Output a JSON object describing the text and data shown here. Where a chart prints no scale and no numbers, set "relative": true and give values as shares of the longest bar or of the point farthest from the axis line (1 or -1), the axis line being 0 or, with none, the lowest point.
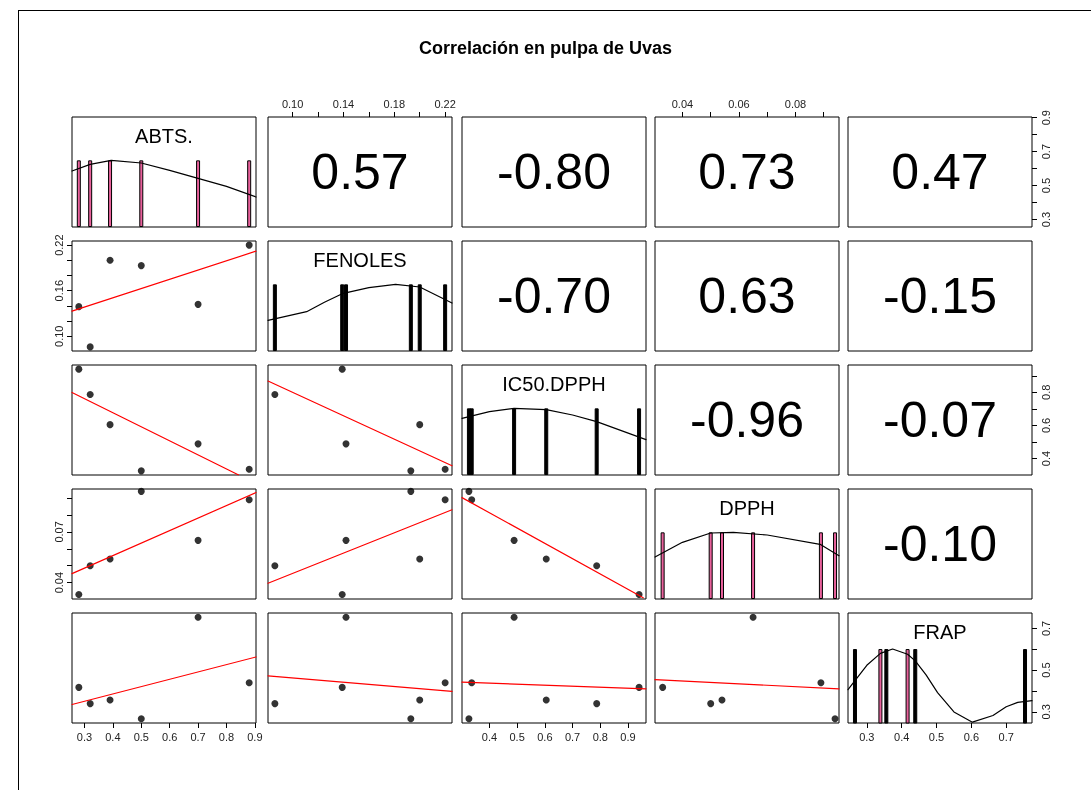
{
  "chart_data": [
    {
      "type": "other",
      "title": "Correlación en pulpa de Uvas"
    },
    {
      "type": "bar",
      "title": "ABTS.",
      "relative": true,
      "xlim": [
        0.256,
        0.904
      ],
      "tick_labels": false,
      "series": [
        {
          "type": "bar",
          "x": [
            0.28,
            0.32,
            0.39,
            0.5,
            0.7,
            0.88
          ],
          "values": [
            1,
            1,
            1,
            1,
            1,
            1
          ],
          "colors": [
            "#e8609b",
            "#e8609b",
            "#e8609b",
            "#e8609b",
            "#e8609b",
            "#e8609b"
          ]
        },
        {
          "type": "line",
          "x": [
            0.256,
            0.32,
            0.394,
            0.5,
            0.6,
            0.7,
            0.8,
            0.904
          ],
          "values": [
            0.84,
            0.94,
            1.0,
            0.96,
            0.85,
            0.73,
            0.61,
            0.45
          ],
          "color": "#000000"
        }
      ]
    },
    {
      "type": "scatter",
      "annotations": [
        "0.57"
      ],
      "ylim": [
        0.256,
        0.904
      ],
      "xlim": [
        0.0806,
        0.2254
      ],
      "xticks": [
        {
          "value": 0.1,
          "label": "0.10"
        },
        {
          "value": 0.12,
          "label": null
        },
        0.14,
        {
          "value": 0.16,
          "label": null
        },
        0.18,
        {
          "value": 0.2,
          "label": null
        },
        0.22
      ],
      "tick_labels": "x"
    },
    {
      "type": "other",
      "annotations": [
        "-0.80"
      ]
    },
    {
      "type": "scatter",
      "annotations": [
        "0.73"
      ],
      "ylim": [
        0.256,
        0.904
      ],
      "xlim": [
        0.0303,
        0.0954
      ],
      "xticks": [
        0.04,
        {
          "value": 0.05,
          "label": null
        },
        0.06,
        {
          "value": 0.07,
          "label": null
        },
        0.08,
        {
          "value": 0.09,
          "label": null
        }
      ],
      "tick_labels": "x"
    },
    {
      "type": "scatter",
      "annotations": [
        "0.47"
      ],
      "xlim": [
        0.246,
        0.774
      ],
      "ylim": [
        0.256,
        0.904
      ],
      "yticks": [
        0.3,
        {
          "value": 0.4,
          "label": null
        },
        0.5,
        {
          "value": 0.6,
          "label": null
        },
        0.7,
        {
          "value": 0.8,
          "label": null
        },
        0.9
      ],
      "tick_labels": "y"
    },
    {
      "type": "scatter",
      "xlim": [
        0.256,
        0.904
      ],
      "ylim": [
        0.0806,
        0.2254
      ],
      "yticks": [
        {
          "value": 0.1,
          "label": "0.10"
        },
        {
          "value": 0.12,
          "label": null
        },
        {
          "value": 0.14,
          "label": null
        },
        0.16,
        {
          "value": 0.18,
          "label": null
        },
        {
          "value": 0.2,
          "label": null
        },
        0.22
      ],
      "tick_labels": "y",
      "series": [
        {
          "type": "scatter",
          "marker": "circle",
          "x": [
            0.28,
            0.32,
            0.39,
            0.5,
            0.7,
            0.88
          ],
          "values": [
            0.139,
            0.086,
            0.2,
            0.193,
            0.142,
            0.22
          ],
          "color": "#000000"
        },
        {
          "type": "line",
          "x": [
            0.256,
            0.904
          ],
          "values": [
            0.133,
            0.212
          ],
          "color": "#ff0000"
        }
      ]
    },
    {
      "type": "bar",
      "title": "FENOLES",
      "relative": true,
      "xlim": [
        0.0806,
        0.2254
      ],
      "tick_labels": false,
      "series": [
        {
          "type": "bar",
          "x": [
            0.086,
            0.139,
            0.142,
            0.193,
            0.2,
            0.22
          ],
          "values": [
            1,
            1,
            1,
            1,
            1,
            1
          ],
          "colors": [
            "#000000",
            "#000000",
            "#000000",
            "#000000",
            "#000000",
            "#000000"
          ]
        },
        {
          "type": "line",
          "x": [
            0.0806,
            0.111,
            0.125,
            0.139,
            0.16,
            0.181,
            0.2,
            0.2254
          ],
          "values": [
            0.46,
            0.59,
            0.73,
            0.86,
            0.95,
            1.0,
            0.96,
            0.72
          ],
          "color": "#000000"
        }
      ]
    },
    {
      "type": "other",
      "annotations": [
        "-0.70"
      ]
    },
    {
      "type": "other",
      "annotations": [
        "0.63"
      ]
    },
    {
      "type": "other",
      "annotations": [
        "-0.15"
      ]
    },
    {
      "type": "scatter",
      "xlim": [
        0.256,
        0.904
      ],
      "ylim": [
        0.301,
        0.965
      ],
      "tick_labels": false,
      "series": [
        {
          "type": "scatter",
          "marker": "circle",
          "x": [
            0.28,
            0.32,
            0.39,
            0.5,
            0.7,
            0.88
          ],
          "values": [
            0.94,
            0.787,
            0.605,
            0.326,
            0.489,
            0.336
          ],
          "color": "#000000"
        },
        {
          "type": "line",
          "x": [
            0.256,
            0.843
          ],
          "values": [
            0.799,
            0.301
          ],
          "color": "#ff0000"
        }
      ]
    },
    {
      "type": "scatter",
      "xlim": [
        0.0806,
        0.2254
      ],
      "ylim": [
        0.301,
        0.965
      ],
      "tick_labels": false,
      "series": [
        {
          "type": "scatter",
          "marker": "circle",
          "x": [
            0.139,
            0.086,
            0.2,
            0.193,
            0.142,
            0.22
          ],
          "values": [
            0.94,
            0.787,
            0.605,
            0.326,
            0.489,
            0.336
          ],
          "color": "#000000"
        },
        {
          "type": "line",
          "x": [
            0.0806,
            0.2254
          ],
          "values": [
            0.868,
            0.357
          ],
          "color": "#ff0000"
        }
      ]
    },
    {
      "type": "bar",
      "title": "IC50.DPPH",
      "relative": true,
      "xlim": [
        0.301,
        0.965
      ],
      "tick_labels": false,
      "series": [
        {
          "type": "bar",
          "x": [
            0.326,
            0.336,
            0.489,
            0.605,
            0.787,
            0.94
          ],
          "values": [
            1,
            1,
            1,
            1,
            1,
            1
          ],
          "colors": [
            "#000000",
            "#000000",
            "#000000",
            "#000000",
            "#000000",
            "#000000"
          ]
        },
        {
          "type": "line",
          "x": [
            0.301,
            0.4,
            0.489,
            0.605,
            0.7,
            0.787,
            0.965
          ],
          "values": [
            0.85,
            0.95,
            1.0,
            0.98,
            0.9,
            0.8,
            0.53
          ],
          "color": "#000000"
        }
      ]
    },
    {
      "type": "other",
      "annotations": [
        "-0.96"
      ]
    },
    {
      "type": "scatter",
      "annotations": [
        "-0.07"
      ],
      "xlim": [
        0.246,
        0.774
      ],
      "ylim": [
        0.301,
        0.965
      ],
      "yticks": [
        0.4,
        {
          "value": 0.5,
          "label": null
        },
        0.6,
        {
          "value": 0.7,
          "label": null
        },
        0.8,
        {
          "value": 0.9,
          "label": null
        }
      ],
      "tick_labels": "y"
    },
    {
      "type": "scatter",
      "xlim": [
        0.256,
        0.904
      ],
      "ylim": [
        0.0303,
        0.0954
      ],
      "yticks": [
        0.04,
        {
          "value": 0.05,
          "label": null
        },
        {
          "value": 0.06,
          "label": null
        },
        0.07,
        {
          "value": 0.08,
          "label": null
        },
        {
          "value": 0.09,
          "label": null
        }
      ],
      "tick_labels": "y",
      "series": [
        {
          "type": "scatter",
          "marker": "circle",
          "x": [
            0.28,
            0.32,
            0.39,
            0.5,
            0.7,
            0.88
          ],
          "values": [
            0.033,
            0.05,
            0.054,
            0.094,
            0.065,
            0.089
          ],
          "color": "#000000"
        },
        {
          "type": "line",
          "x": [
            0.256,
            0.904
          ],
          "values": [
            0.0453,
            0.0933
          ],
          "color": "#ff0000"
        }
      ]
    },
    {
      "type": "scatter",
      "xlim": [
        0.0806,
        0.2254
      ],
      "ylim": [
        0.0303,
        0.0954
      ],
      "tick_labels": false,
      "series": [
        {
          "type": "scatter",
          "marker": "circle",
          "x": [
            0.139,
            0.086,
            0.2,
            0.193,
            0.142,
            0.22
          ],
          "values": [
            0.033,
            0.05,
            0.054,
            0.094,
            0.065,
            0.089
          ],
          "color": "#000000"
        },
        {
          "type": "line",
          "x": [
            0.0806,
            0.2254
          ],
          "values": [
            0.0396,
            0.0831
          ],
          "color": "#ff0000"
        }
      ]
    },
    {
      "type": "scatter",
      "xlim": [
        0.301,
        0.965
      ],
      "ylim": [
        0.0303,
        0.0954
      ],
      "tick_labels": false,
      "series": [
        {
          "type": "scatter",
          "marker": "circle",
          "x": [
            0.94,
            0.787,
            0.605,
            0.326,
            0.489,
            0.336
          ],
          "values": [
            0.033,
            0.05,
            0.054,
            0.094,
            0.065,
            0.089
          ],
          "color": "#000000"
        },
        {
          "type": "line",
          "x": [
            0.301,
            0.955
          ],
          "values": [
            0.0903,
            0.031
          ],
          "color": "#ff0000"
        }
      ]
    },
    {
      "type": "bar",
      "title": "DPPH",
      "relative": true,
      "xlim": [
        0.0303,
        0.0954
      ],
      "tick_labels": false,
      "series": [
        {
          "type": "bar",
          "x": [
            0.033,
            0.05,
            0.054,
            0.065,
            0.089,
            0.094
          ],
          "values": [
            1,
            1,
            1,
            1,
            1,
            1
          ],
          "colors": [
            "#e8609b",
            "#e8609b",
            "#e8609b",
            "#e8609b",
            "#e8609b",
            "#e8609b"
          ]
        },
        {
          "type": "line",
          "x": [
            0.0303,
            0.04,
            0.05,
            0.058,
            0.07,
            0.0887,
            0.0954
          ],
          "values": [
            0.63,
            0.85,
            0.99,
            1.0,
            0.96,
            0.82,
            0.65
          ],
          "color": "#000000"
        }
      ]
    },
    {
      "type": "other",
      "annotations": [
        "-0.10"
      ]
    },
    {
      "type": "scatter",
      "xlim": [
        0.256,
        0.904
      ],
      "ylim": [
        0.246,
        0.774
      ],
      "xticks": [
        0.3,
        0.4,
        0.5,
        0.6,
        0.7,
        0.8,
        0.9
      ],
      "tick_labels": "x",
      "series": [
        {
          "type": "scatter",
          "marker": "circle",
          "x": [
            0.28,
            0.32,
            0.39,
            0.5,
            0.7,
            0.88
          ],
          "values": [
            0.417,
            0.339,
            0.356,
            0.266,
            0.754,
            0.439
          ],
          "color": "#000000"
        },
        {
          "type": "line",
          "x": [
            0.256,
            0.904
          ],
          "values": [
            0.335,
            0.563
          ],
          "color": "#ff0000"
        }
      ]
    },
    {
      "type": "scatter",
      "xlim": [
        0.0806,
        0.2254
      ],
      "ylim": [
        0.246,
        0.774
      ],
      "tick_labels": false,
      "series": [
        {
          "type": "scatter",
          "marker": "circle",
          "x": [
            0.139,
            0.086,
            0.2,
            0.193,
            0.142,
            0.22
          ],
          "values": [
            0.417,
            0.339,
            0.356,
            0.266,
            0.754,
            0.439
          ],
          "color": "#000000"
        },
        {
          "type": "line",
          "x": [
            0.0806,
            0.2254
          ],
          "values": [
            0.472,
            0.398
          ],
          "color": "#ff0000"
        }
      ]
    },
    {
      "type": "scatter",
      "xlim": [
        0.301,
        0.965
      ],
      "ylim": [
        0.246,
        0.774
      ],
      "xticks": [
        0.4,
        0.5,
        0.6,
        0.7,
        0.8,
        0.9
      ],
      "tick_labels": "x",
      "series": [
        {
          "type": "scatter",
          "marker": "circle",
          "x": [
            0.94,
            0.787,
            0.605,
            0.326,
            0.489,
            0.336
          ],
          "values": [
            0.417,
            0.339,
            0.356,
            0.266,
            0.754,
            0.439
          ],
          "color": "#000000"
        },
        {
          "type": "line",
          "x": [
            0.301,
            0.965
          ],
          "values": [
            0.442,
            0.41
          ],
          "color": "#ff0000"
        }
      ]
    },
    {
      "type": "scatter",
      "xlim": [
        0.0303,
        0.0954
      ],
      "ylim": [
        0.246,
        0.774
      ],
      "tick_labels": false,
      "series": [
        {
          "type": "scatter",
          "marker": "circle",
          "x": [
            0.033,
            0.05,
            0.054,
            0.094,
            0.065,
            0.089
          ],
          "values": [
            0.417,
            0.339,
            0.356,
            0.266,
            0.754,
            0.439
          ],
          "color": "#000000"
        },
        {
          "type": "line",
          "x": [
            0.0303,
            0.0954
          ],
          "values": [
            0.454,
            0.41
          ],
          "color": "#ff0000"
        }
      ]
    },
    {
      "type": "bar",
      "title": "FRAP",
      "xlim": [
        0.246,
        0.774
      ],
      "xticks": [
        0.3,
        0.4,
        0.5,
        0.6,
        0.7
      ],
      "ylim": [
        0.246,
        0.774
      ],
      "yticks": [
        0.3,
        {
          "value": 0.4,
          "label": null
        },
        0.5,
        {
          "value": 0.6,
          "label": null
        },
        0.7
      ],
      "series": [
        {
          "type": "bar",
          "x": [
            0.266,
            0.339,
            0.356,
            0.417,
            0.439,
            0.754
          ],
          "values": [
            0.601,
            0.601,
            0.601,
            0.601,
            0.601,
            0.601
          ],
          "colors": [
            "#000000",
            "#e8609b",
            "#000000",
            "#e8609b",
            "#000000",
            "#000000"
          ]
        },
        {
          "type": "line",
          "x": [
            0.246,
            0.3,
            0.339,
            0.374,
            0.417,
            0.439,
            0.47,
            0.503,
            0.55,
            0.603,
            0.662,
            0.7,
            0.733,
            0.774
          ],
          "values": [
            0.406,
            0.523,
            0.58,
            0.601,
            0.576,
            0.544,
            0.477,
            0.392,
            0.299,
            0.25,
            0.282,
            0.324,
            0.345,
            0.353
          ],
          "color": "#000000"
        }
      ]
    }
  ]
}
